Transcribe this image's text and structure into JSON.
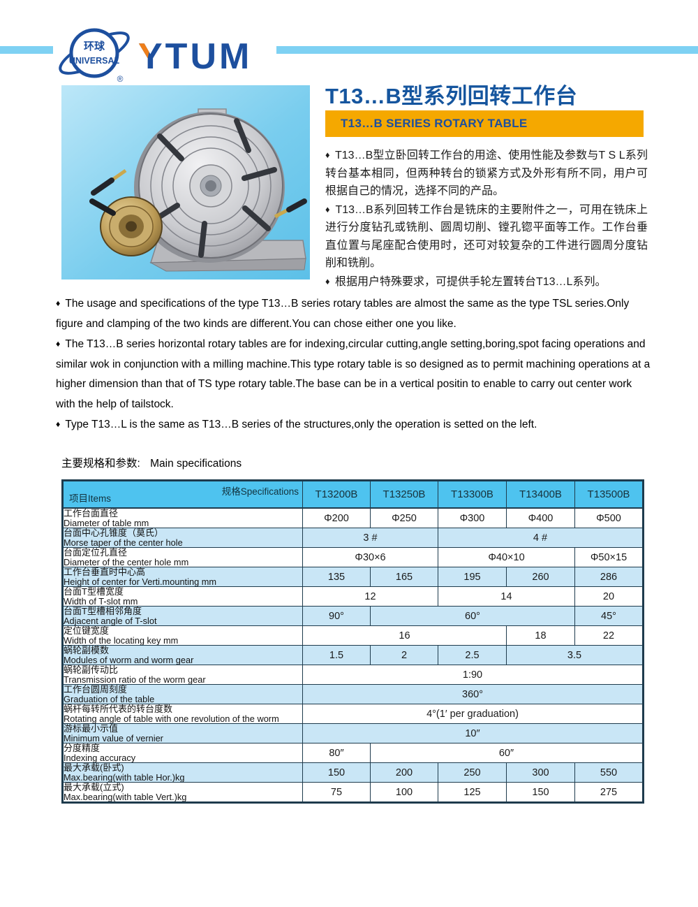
{
  "colors": {
    "accent_blue": "#1d4f9e",
    "title_blue": "#15559e",
    "banner_orange": "#f5a800",
    "y_orange": "#ef7f1a",
    "bar_blue": "#7ed1f3",
    "table_header_blue": "#4ec3ef",
    "table_row_blue": "#c9e6f6",
    "table_border": "#1e3b4d"
  },
  "brand": {
    "globe_cn": "环球",
    "globe_en": "UNIVERSAL",
    "name": "YTUM",
    "registered": "®"
  },
  "header": {
    "title": "T13…B型系列回转工作台",
    "subtitle": "T13…B SERIES ROTARY TABLE"
  },
  "bullet_marker": "♦",
  "intro_cn": [
    "T13…B型立卧回转工作台的用途、使用性能及参数与T S L系列转台基本相同，但两种转台的锁紧方式及外形有所不同，用户可根据自己的情况，选择不同的产品。",
    "T13…B系列回转工作台是铣床的主要附件之一，可用在铣床上进行分度钻孔或铣削、圆周切削、镗孔锪平面等工作。工作台垂直位置与尾座配合使用时，还可对较复杂的工件进行圆周分度钻削和铣削。",
    "根据用户特殊要求，可提供手轮左置转台T13…L系列。"
  ],
  "intro_en": [
    "The usage and specifications of the type T13…B series rotary tables are almost the same as the type TSL series.Only figure and clamping of the two kinds are different.You can chose either one you like.",
    "The T13…B series horizontal rotary tables are for indexing,circular cutting,angle setting,boring,spot facing operations and similar wok in conjunction with a milling machine.This type rotary table is so designed as to permit machining operations at a higher dimension than that of TS type rotary table.The base can be in a vertical positin to enable to carry out center work with the help of tailstock.",
    "Type T13…L is the same as T13…B series of the structures,only the operation is setted on the left."
  ],
  "specs": {
    "heading_cn": "主要规格和参数:",
    "heading_en": "Main specifications",
    "corner_top": "规格Specifications",
    "corner_bottom": "项目Items",
    "models": [
      "T13200B",
      "T13250B",
      "T13300B",
      "T13400B",
      "T13500B"
    ],
    "rows": [
      {
        "cn": "工作台面直径",
        "en": "Diameter of table mm",
        "cells": [
          {
            "text": "Φ200",
            "span": 1
          },
          {
            "text": "Φ250",
            "span": 1
          },
          {
            "text": "Φ300",
            "span": 1
          },
          {
            "text": "Φ400",
            "span": 1
          },
          {
            "text": "Φ500",
            "span": 1
          }
        ]
      },
      {
        "cn": "台面中心孔锥度（莫氏）",
        "en": "Morse taper of the center hole",
        "cells": [
          {
            "text": "3 #",
            "span": 2
          },
          {
            "text": "4 #",
            "span": 3
          }
        ]
      },
      {
        "cn": "台面定位孔直径",
        "en": "Diameter of the center hole mm",
        "cells": [
          {
            "text": "Φ30×6",
            "span": 2
          },
          {
            "text": "Φ40×10",
            "span": 2
          },
          {
            "text": "Φ50×15",
            "span": 1
          }
        ]
      },
      {
        "cn": "工作台垂直时中心高",
        "en": "Height of center for Verti.mounting mm",
        "cells": [
          {
            "text": "135",
            "span": 1
          },
          {
            "text": "165",
            "span": 1
          },
          {
            "text": "195",
            "span": 1
          },
          {
            "text": "260",
            "span": 1
          },
          {
            "text": "286",
            "span": 1
          }
        ]
      },
      {
        "cn": "台面T型槽宽度",
        "en": "Width of T-slot mm",
        "cells": [
          {
            "text": "12",
            "span": 2
          },
          {
            "text": "14",
            "span": 2
          },
          {
            "text": "20",
            "span": 1
          }
        ]
      },
      {
        "cn": "台面T型槽相邻角度",
        "en": "Adjacent angle of T-slot",
        "cells": [
          {
            "text": "90°",
            "span": 1
          },
          {
            "text": "60°",
            "span": 3
          },
          {
            "text": "45°",
            "span": 1
          }
        ]
      },
      {
        "cn": "定位键宽度",
        "en": "Width of the locating key mm",
        "cells": [
          {
            "text": "16",
            "span": 3
          },
          {
            "text": "18",
            "span": 1
          },
          {
            "text": "22",
            "span": 1
          }
        ]
      },
      {
        "cn": "蜗轮副模数",
        "en": "Modules of worm and worm gear",
        "cells": [
          {
            "text": "1.5",
            "span": 1
          },
          {
            "text": "2",
            "span": 1
          },
          {
            "text": "2.5",
            "span": 1
          },
          {
            "text": "3.5",
            "span": 2
          }
        ]
      },
      {
        "cn": "蜗轮副传动比",
        "en": "Transmission ratio of the worm gear",
        "cells": [
          {
            "text": "1:90",
            "span": 5
          }
        ]
      },
      {
        "cn": "工作台圆周刻度",
        "en": "Graduation of the table",
        "cells": [
          {
            "text": "360°",
            "span": 5
          }
        ]
      },
      {
        "cn": "蜗杆每转所代表的转台度数",
        "en": "Rotating angle of table with one revolution of the worm",
        "cells": [
          {
            "text": "4°(1′ per graduation)",
            "span": 5
          }
        ]
      },
      {
        "cn": "游标最小示值",
        "en": "Minimum value of vernier",
        "cells": [
          {
            "text": "10″",
            "span": 5
          }
        ]
      },
      {
        "cn": "分度精度",
        "en": "Indexing accuracy",
        "cells": [
          {
            "text": "80″",
            "span": 1
          },
          {
            "text": "60″",
            "span": 4
          }
        ]
      },
      {
        "cn": "最大承载(卧式)",
        "en": "Max.bearing(with table Hor.)kg",
        "cells": [
          {
            "text": "150",
            "span": 1
          },
          {
            "text": "200",
            "span": 1
          },
          {
            "text": "250",
            "span": 1
          },
          {
            "text": "300",
            "span": 1
          },
          {
            "text": "550",
            "span": 1
          }
        ]
      },
      {
        "cn": "最大承载(立式)",
        "en": "Max.bearing(with table Vert.)kg",
        "cells": [
          {
            "text": "75",
            "span": 1
          },
          {
            "text": "100",
            "span": 1
          },
          {
            "text": "125",
            "span": 1
          },
          {
            "text": "150",
            "span": 1
          },
          {
            "text": "275",
            "span": 1
          }
        ]
      }
    ]
  }
}
